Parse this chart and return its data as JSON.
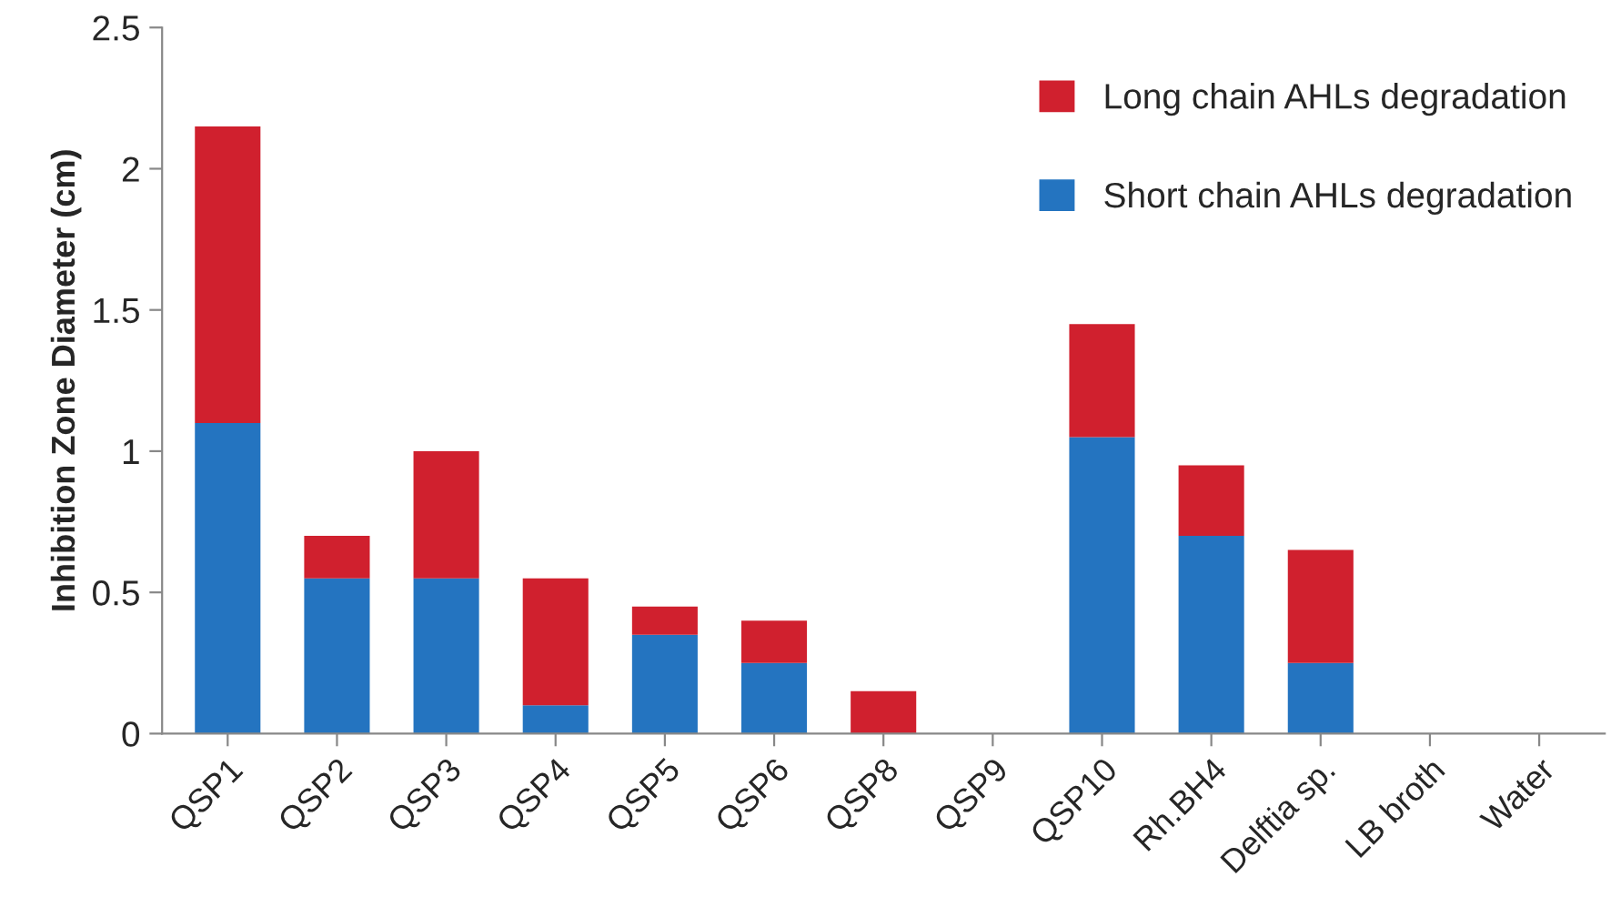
{
  "chart_data": {
    "type": "bar",
    "stacked": true,
    "ylabel": "Inhibition Zone Diameter (cm)",
    "categories": [
      "QSP1",
      "QSP2",
      "QSP3",
      "QSP4",
      "QSP5",
      "QSP6",
      "QSP8",
      "QSP9",
      "QSP10",
      "Rh.BH4",
      "Delftia sp.",
      "LB broth",
      "Water"
    ],
    "series": [
      {
        "name": "Short chain AHLs degradation",
        "color": "#2474c0",
        "values": [
          1.1,
          0.55,
          0.55,
          0.1,
          0.35,
          0.25,
          0,
          0,
          1.05,
          0.7,
          0.25,
          0,
          0
        ]
      },
      {
        "name": "Long chain AHLs degradation",
        "color": "#d0202e",
        "values": [
          1.05,
          0.15,
          0.45,
          0.45,
          0.1,
          0.15,
          0.15,
          0,
          0.4,
          0.25,
          0.4,
          0,
          0
        ]
      }
    ],
    "ylim": [
      0,
      2.5
    ],
    "yticks": [
      0,
      0.5,
      1,
      1.5,
      2,
      2.5
    ],
    "grid": false,
    "legend": "top right"
  }
}
